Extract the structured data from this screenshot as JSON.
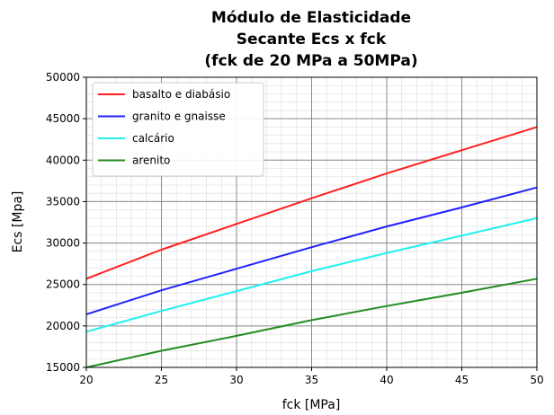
{
  "chart_data": {
    "type": "line",
    "title": [
      "Módulo de Elasticidade",
      "Secante Ecs x fck",
      "(fck de 20 MPa a 50MPa)"
    ],
    "xlabel": "fck [MPa]",
    "ylabel": "Ecs [Mpa]",
    "xlim": [
      20,
      50
    ],
    "ylim": [
      15000,
      50000
    ],
    "xticks": [
      20,
      25,
      30,
      35,
      40,
      45,
      50
    ],
    "yticks": [
      15000,
      20000,
      25000,
      30000,
      35000,
      40000,
      45000,
      50000
    ],
    "grid": true,
    "minor_grid": true,
    "legend_position": "top-left",
    "x": [
      20,
      25,
      30,
      35,
      40,
      45,
      50
    ],
    "series": [
      {
        "name": "basalto e diabásio",
        "color": "#ff2020",
        "values": [
          25700,
          29200,
          32300,
          35400,
          38400,
          41200,
          44000
        ]
      },
      {
        "name": "granito e gnaisse",
        "color": "#2020ff",
        "values": [
          21400,
          24300,
          26900,
          29500,
          32000,
          34300,
          36700
        ]
      },
      {
        "name": "calcário",
        "color": "#20f0f0",
        "values": [
          19300,
          21800,
          24200,
          26600,
          28800,
          30900,
          33000
        ]
      },
      {
        "name": "arenito",
        "color": "#228b22",
        "values": [
          15000,
          17000,
          18800,
          20700,
          22400,
          24000,
          25700
        ]
      }
    ]
  }
}
